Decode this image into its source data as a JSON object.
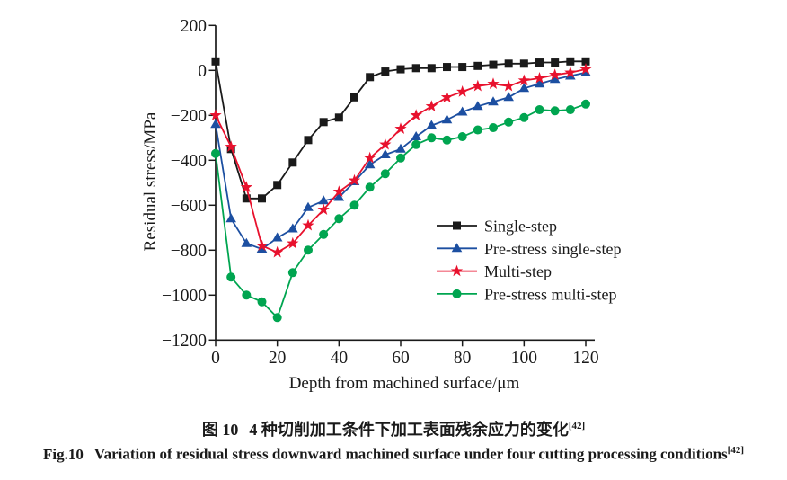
{
  "figure": {
    "caption_zh": {
      "label": "图 10",
      "text": "4 种切削加工条件下加工表面残余应力的变化",
      "ref": "[42]"
    },
    "caption_en": {
      "label": "Fig.10",
      "text": "Variation of residual stress downward machined surface under four cutting processing conditions",
      "ref": "[42]"
    }
  },
  "chart_data": {
    "type": "line",
    "title": "",
    "xlabel": "Depth from machined surface/μm",
    "ylabel": "Residual stress/MPa",
    "xlim": [
      0,
      120
    ],
    "ylim": [
      -1200,
      200
    ],
    "x_ticks": [
      0,
      20,
      40,
      60,
      80,
      100,
      120
    ],
    "y_ticks": [
      200,
      0,
      -200,
      -400,
      -600,
      -800,
      -1000,
      -1200
    ],
    "grid": false,
    "legend_position": "inside-right",
    "x": [
      0,
      5,
      10,
      15,
      20,
      25,
      30,
      35,
      40,
      45,
      50,
      55,
      60,
      65,
      70,
      75,
      80,
      85,
      90,
      95,
      100,
      105,
      110,
      115,
      120
    ],
    "series": [
      {
        "name": "Single-step",
        "color": "#1a1a1a",
        "marker": "square",
        "values": [
          40,
          -350,
          -570,
          -570,
          -510,
          -410,
          -310,
          -230,
          -210,
          -120,
          -30,
          -5,
          5,
          10,
          10,
          15,
          15,
          20,
          25,
          30,
          30,
          35,
          35,
          40,
          40
        ]
      },
      {
        "name": "Pre-stress single-step",
        "color": "#1c4fa1",
        "marker": "triangle",
        "values": [
          -240,
          -660,
          -770,
          -795,
          -745,
          -705,
          -610,
          -580,
          -565,
          -495,
          -420,
          -375,
          -350,
          -295,
          -245,
          -220,
          -185,
          -160,
          -140,
          -120,
          -80,
          -60,
          -40,
          -25,
          -10
        ]
      },
      {
        "name": "Multi-step",
        "color": "#e8112d",
        "marker": "star",
        "values": [
          -200,
          -340,
          -520,
          -780,
          -810,
          -770,
          -690,
          -620,
          -540,
          -490,
          -390,
          -330,
          -260,
          -200,
          -160,
          -120,
          -95,
          -70,
          -60,
          -70,
          -45,
          -35,
          -20,
          -10,
          5
        ]
      },
      {
        "name": "Pre-stress multi-step",
        "color": "#00a550",
        "marker": "circle",
        "values": [
          -370,
          -920,
          -1000,
          -1030,
          -1100,
          -900,
          -800,
          -730,
          -660,
          -600,
          -520,
          -460,
          -390,
          -330,
          -300,
          -310,
          -295,
          -265,
          -255,
          -230,
          -210,
          -175,
          -180,
          -175,
          -150
        ]
      }
    ]
  }
}
